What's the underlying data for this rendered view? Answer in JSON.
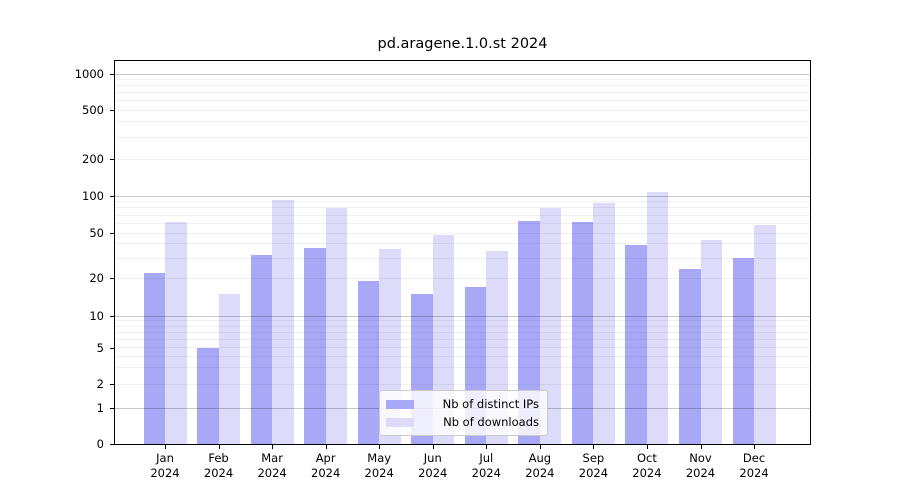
{
  "figure": {
    "title": "pd.aragene.1.0.st 2024"
  },
  "chart_data": {
    "type": "bar",
    "title": "pd.aragene.1.0.st 2024",
    "categories": [
      "Jan",
      "Feb",
      "Mar",
      "Apr",
      "May",
      "Jun",
      "Jul",
      "Aug",
      "Sep",
      "Oct",
      "Nov",
      "Dec"
    ],
    "year_label": "2024",
    "series": [
      {
        "name": "Nb of distinct IPs",
        "color": "#a8a8f6",
        "values": [
          22,
          5,
          32,
          37,
          19,
          15,
          17,
          63,
          62,
          39,
          24,
          30
        ]
      },
      {
        "name": "Nb of downloads",
        "color": "#dcdcfa",
        "values": [
          61,
          15,
          93,
          80,
          36,
          48,
          35,
          80,
          87,
          108,
          43,
          58
        ]
      }
    ],
    "y_axis": {
      "scale": "symlog",
      "ticks": [
        0,
        1,
        2,
        5,
        10,
        20,
        50,
        100,
        200,
        500,
        1000
      ],
      "ylim": [
        0,
        1100
      ]
    },
    "x_axis": {
      "tick_line1": [
        "Jan",
        "Feb",
        "Mar",
        "Apr",
        "May",
        "Jun",
        "Jul",
        "Aug",
        "Sep",
        "Oct",
        "Nov",
        "Dec"
      ],
      "tick_line2": "2024"
    },
    "grid": "on",
    "legend_position": "lower center",
    "colors": {
      "distinct_ips_bar": "#a8a8f6",
      "downloads_bar": "#dcdcfa",
      "grid_major": "#c7c7c7",
      "grid_minor": "#f0f0f0",
      "spine": "#000000"
    }
  }
}
